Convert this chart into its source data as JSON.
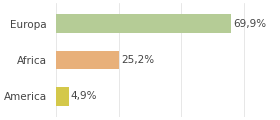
{
  "categories": [
    "Europa",
    "Africa",
    "America"
  ],
  "values": [
    69.9,
    25.2,
    4.9
  ],
  "labels": [
    "69,9%",
    "25,2%",
    "4,9%"
  ],
  "bar_colors": [
    "#b5cc96",
    "#e8b07a",
    "#d4c84a"
  ],
  "background_color": "#ffffff",
  "xlim": [
    0,
    88
  ],
  "bar_height": 0.52,
  "label_fontsize": 7.5,
  "tick_fontsize": 7.5,
  "figsize": [
    2.8,
    1.2
  ],
  "dpi": 100
}
